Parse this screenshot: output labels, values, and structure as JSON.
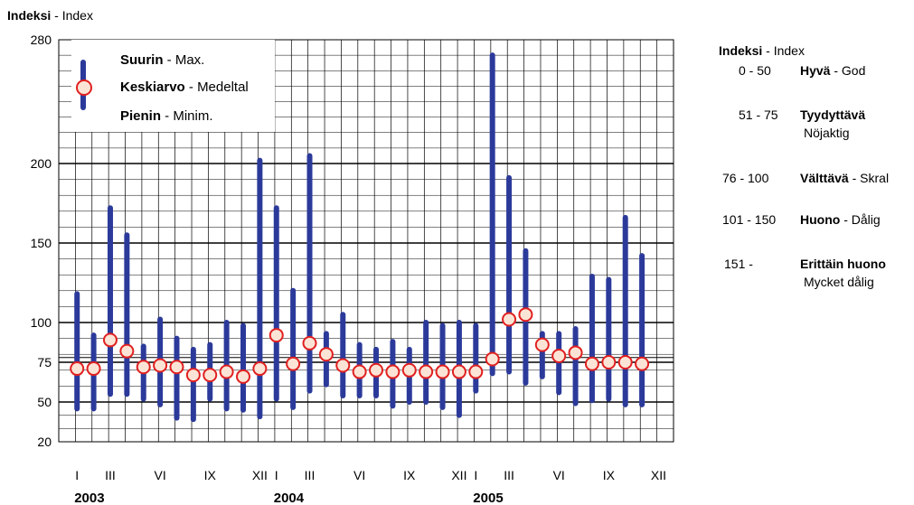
{
  "top_text": "",
  "axis_title": {
    "bold": "Indeksi",
    "normal": "Index",
    "sep": " - "
  },
  "legend": {
    "max": {
      "bold": "Suurin",
      "normal": "Max."
    },
    "mean": {
      "bold": "Keskiarvo",
      "normal": "Medeltal"
    },
    "min": {
      "bold": "Pienin",
      "normal": "Minim."
    },
    "sep": " - "
  },
  "scale": {
    "title": {
      "bold": "Indeksi",
      "normal": "Index"
    },
    "rows": [
      {
        "range": "0 -  50",
        "label_bold": "Hyvä",
        "label_normal": "God",
        "sub": ""
      },
      {
        "range": "51 -  75",
        "label_bold": "Tyydyttävä",
        "label_normal": "",
        "sub": "Nöjaktig"
      },
      {
        "range": "76 - 100",
        "label_bold": "Välttävä",
        "label_normal": "Skral",
        "sub": ""
      },
      {
        "range": "101 - 150",
        "label_bold": "Huono",
        "label_normal": "Dålig",
        "sub": ""
      },
      {
        "range": "151 -",
        "label_bold": "Erittäin huono",
        "label_normal": "",
        "sub": "Mycket dålig"
      }
    ]
  },
  "colors": {
    "bar": "#2b3a9a",
    "marker_fill": "#fbe4d5",
    "marker_stroke": "#e02020",
    "grid": "#000000"
  },
  "chart_data": {
    "type": "scatter",
    "y_ticks": [
      20,
      50,
      75,
      100,
      150,
      200,
      280
    ],
    "ylim": [
      20,
      280
    ],
    "x_tick_labels": [
      "I",
      "III",
      "VI",
      "IX",
      "XII",
      "I",
      "III",
      "VI",
      "IX",
      "XII",
      "I",
      "III",
      "VI",
      "IX",
      "XII"
    ],
    "x_tick_months": [
      1,
      3,
      6,
      9,
      12,
      13,
      15,
      18,
      21,
      24,
      25,
      27,
      30,
      33,
      36
    ],
    "years": [
      "2003",
      "2004",
      "2005"
    ],
    "series": [
      {
        "name": "Suurin - Max.",
        "values": [
          118,
          92,
          172,
          155,
          85,
          102,
          90,
          83,
          86,
          100,
          98,
          202,
          172,
          120,
          205,
          93,
          105,
          86,
          83,
          88,
          83,
          100,
          98,
          100,
          98,
          270,
          191,
          145,
          93,
          93,
          96,
          129,
          127,
          166,
          142
        ]
      },
      {
        "name": "Keskiarvo - Medeltal",
        "values": [
          71,
          71,
          89,
          82,
          72,
          73,
          72,
          67,
          67,
          69,
          66,
          71,
          92,
          74,
          87,
          80,
          73,
          69,
          70,
          69,
          70,
          69,
          69,
          69,
          69,
          77,
          102,
          105,
          86,
          79,
          81,
          74,
          75,
          75,
          74
        ]
      },
      {
        "name": "Pienin - Minim.",
        "values": [
          45,
          45,
          55,
          55,
          52,
          48,
          38,
          37,
          52,
          45,
          44,
          39,
          52,
          46,
          57,
          61,
          54,
          54,
          54,
          47,
          50,
          50,
          46,
          40,
          57,
          68,
          69,
          62,
          66,
          56,
          49,
          51,
          52,
          48,
          48
        ]
      }
    ]
  }
}
